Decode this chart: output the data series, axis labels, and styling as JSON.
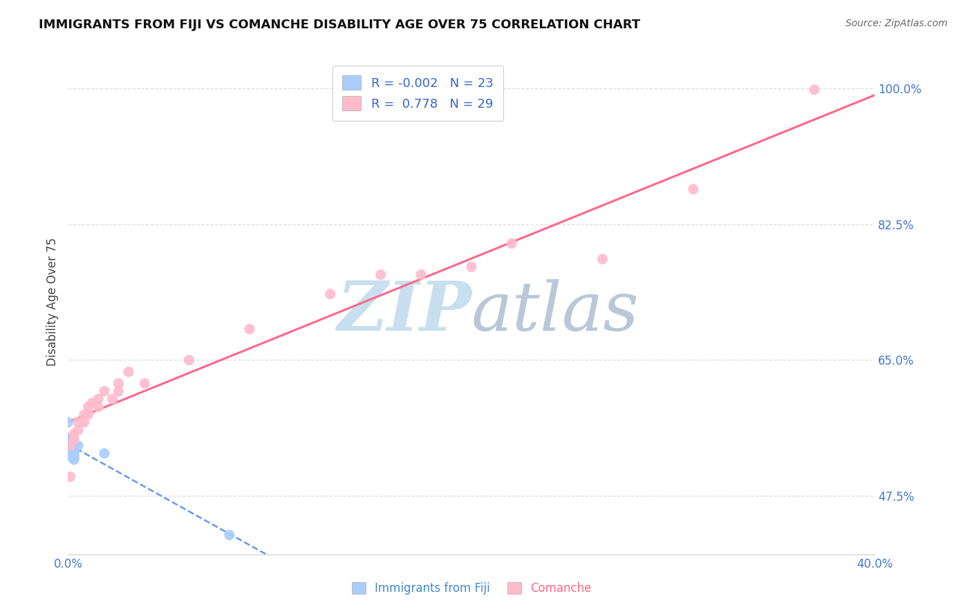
{
  "title": "IMMIGRANTS FROM FIJI VS COMANCHE DISABILITY AGE OVER 75 CORRELATION CHART",
  "source": "Source: ZipAtlas.com",
  "ylabel": "Disability Age Over 75",
  "xlabel_fiji": "Immigrants from Fiji",
  "xlabel_comanche": "Comanche",
  "r_fiji": -0.002,
  "n_fiji": 23,
  "r_comanche": 0.778,
  "n_comanche": 29,
  "xmin": 0.0,
  "xmax": 0.4,
  "ymin": 0.4,
  "ymax": 1.05,
  "ytick_positions": [
    0.475,
    0.65,
    0.825,
    1.0
  ],
  "ytick_labels": [
    "47.5%",
    "65.0%",
    "82.5%",
    "100.0%"
  ],
  "xticks": [
    0.0,
    0.1,
    0.2,
    0.3,
    0.4
  ],
  "xtick_labels": [
    "0.0%",
    "",
    "",
    "",
    "40.0%"
  ],
  "fiji_color": "#aaccff",
  "comanche_color": "#ffbbcc",
  "fiji_line_color": "#6699ee",
  "comanche_line_color": "#ff6688",
  "watermark_color": "#c8dff0",
  "grid_color": "#dddddd",
  "fiji_points": [
    [
      0.0,
      0.57
    ],
    [
      0.001,
      0.55
    ],
    [
      0.001,
      0.548
    ],
    [
      0.001,
      0.545
    ],
    [
      0.001,
      0.542
    ],
    [
      0.002,
      0.547
    ],
    [
      0.002,
      0.545
    ],
    [
      0.002,
      0.542
    ],
    [
      0.002,
      0.538
    ],
    [
      0.002,
      0.535
    ],
    [
      0.002,
      0.53
    ],
    [
      0.002,
      0.528
    ],
    [
      0.002,
      0.525
    ],
    [
      0.003,
      0.54
    ],
    [
      0.003,
      0.537
    ],
    [
      0.003,
      0.534
    ],
    [
      0.003,
      0.531
    ],
    [
      0.003,
      0.528
    ],
    [
      0.003,
      0.525
    ],
    [
      0.003,
      0.522
    ],
    [
      0.005,
      0.54
    ],
    [
      0.018,
      0.53
    ],
    [
      0.08,
      0.425
    ]
  ],
  "comanche_points": [
    [
      0.001,
      0.54
    ],
    [
      0.001,
      0.5
    ],
    [
      0.003,
      0.555
    ],
    [
      0.003,
      0.548
    ],
    [
      0.005,
      0.57
    ],
    [
      0.005,
      0.56
    ],
    [
      0.008,
      0.58
    ],
    [
      0.008,
      0.57
    ],
    [
      0.01,
      0.59
    ],
    [
      0.01,
      0.58
    ],
    [
      0.012,
      0.595
    ],
    [
      0.015,
      0.6
    ],
    [
      0.015,
      0.59
    ],
    [
      0.018,
      0.61
    ],
    [
      0.022,
      0.6
    ],
    [
      0.025,
      0.62
    ],
    [
      0.025,
      0.61
    ],
    [
      0.03,
      0.635
    ],
    [
      0.038,
      0.62
    ],
    [
      0.06,
      0.65
    ],
    [
      0.09,
      0.69
    ],
    [
      0.13,
      0.735
    ],
    [
      0.155,
      0.76
    ],
    [
      0.175,
      0.76
    ],
    [
      0.2,
      0.77
    ],
    [
      0.22,
      0.8
    ],
    [
      0.265,
      0.78
    ],
    [
      0.31,
      0.87
    ],
    [
      0.37,
      0.998
    ]
  ]
}
